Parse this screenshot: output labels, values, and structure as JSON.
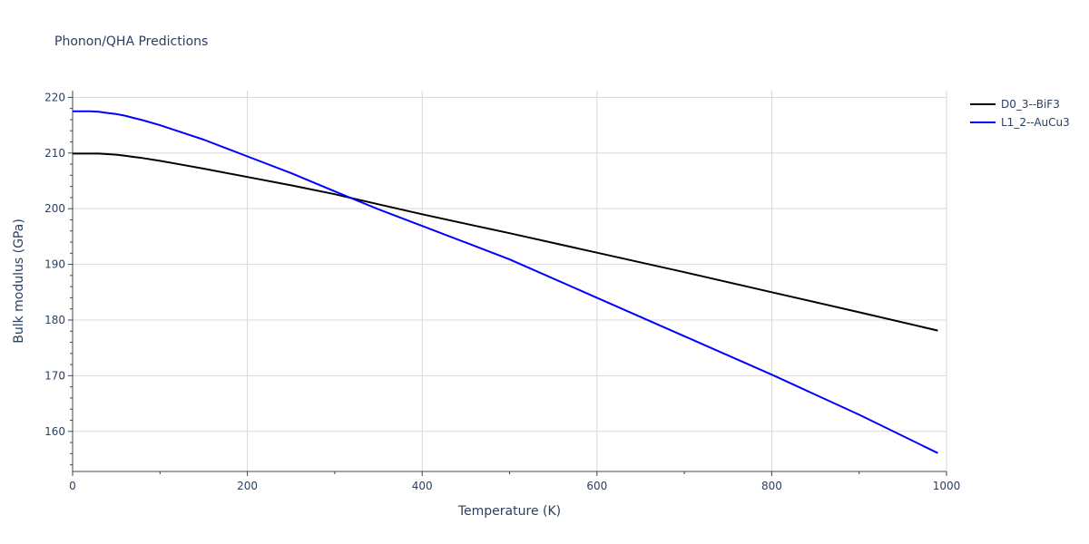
{
  "chart_data": {
    "type": "line",
    "title": "Phonon/QHA Predictions",
    "xlabel": "Temperature (K)",
    "ylabel": "Bulk modulus (GPa)",
    "xlim": [
      0,
      1000
    ],
    "ylim": [
      152.8,
      221.2
    ],
    "x_ticks": [
      0,
      200,
      400,
      600,
      800,
      1000
    ],
    "y_ticks": [
      160,
      170,
      180,
      190,
      200,
      210,
      220
    ],
    "grid": true,
    "legend_position": "top-right",
    "series": [
      {
        "name": "D0_3--BiF3",
        "color": "#000000",
        "x": [
          0,
          10,
          20,
          30,
          40,
          50,
          60,
          70,
          80,
          100,
          125,
          150,
          200,
          250,
          300,
          350,
          400,
          450,
          500,
          600,
          700,
          800,
          900,
          990
        ],
        "y": [
          209.9,
          209.9,
          209.9,
          209.9,
          209.8,
          209.7,
          209.5,
          209.3,
          209.1,
          208.6,
          207.9,
          207.2,
          205.7,
          204.2,
          202.6,
          200.8,
          199.0,
          197.3,
          195.6,
          192.1,
          188.6,
          185.0,
          181.4,
          178.1
        ]
      },
      {
        "name": "L1_2--AuCu3",
        "color": "#0000ff",
        "x": [
          0,
          10,
          20,
          30,
          40,
          50,
          60,
          70,
          80,
          100,
          125,
          150,
          200,
          250,
          300,
          350,
          400,
          450,
          500,
          600,
          700,
          800,
          900,
          990
        ],
        "y": [
          217.5,
          217.5,
          217.5,
          217.4,
          217.2,
          217.0,
          216.7,
          216.3,
          215.9,
          215.0,
          213.7,
          212.4,
          209.4,
          206.4,
          203.1,
          199.9,
          196.9,
          193.9,
          190.9,
          184.0,
          177.1,
          170.2,
          163.0,
          156.1
        ]
      }
    ]
  }
}
